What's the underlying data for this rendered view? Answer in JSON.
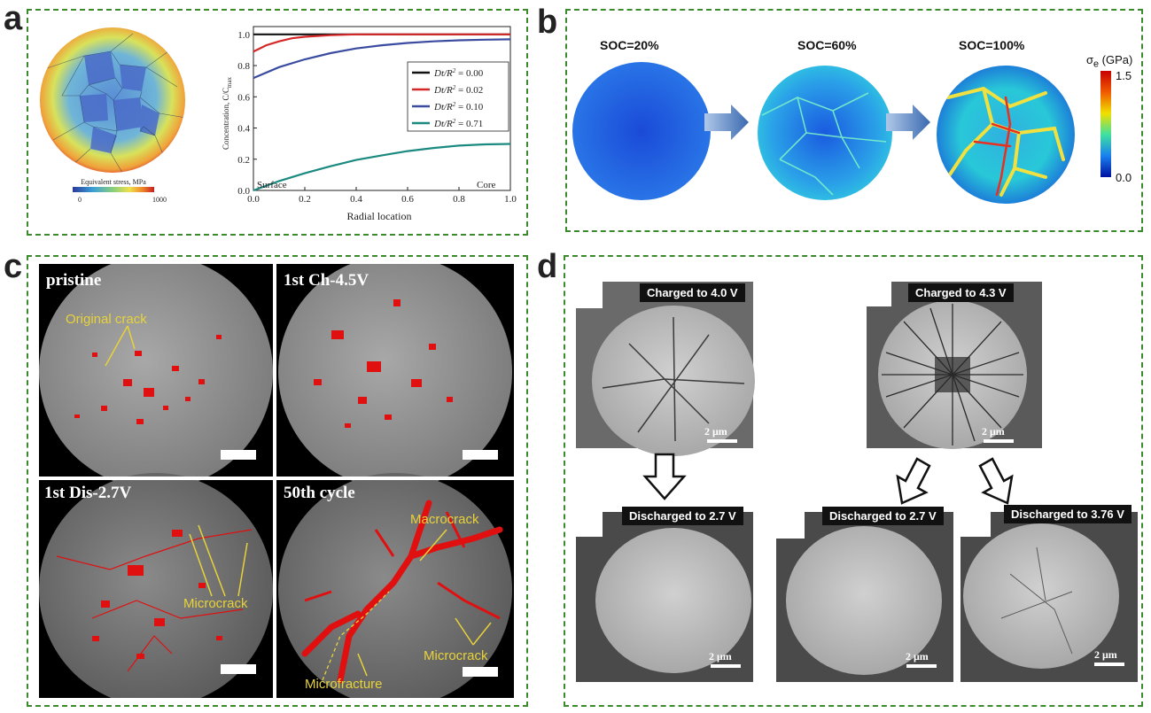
{
  "panels": {
    "a": "a",
    "b": "b",
    "c": "c",
    "d": "d"
  },
  "panel_a": {
    "colorbar_title": "Equivalent stress, MPa",
    "colorbar_min": "0",
    "colorbar_max": "1000",
    "chart_data": {
      "type": "line",
      "xlabel": "Radial location",
      "ylabel": "Concentration, C/C",
      "ylabel_sub": "max",
      "xlim": [
        0.0,
        1.0
      ],
      "ylim": [
        0.0,
        1.05
      ],
      "xticks": [
        "0.0",
        "0.2",
        "0.4",
        "0.6",
        "0.8",
        "1.0"
      ],
      "yticks": [
        "0.0",
        "0.2",
        "0.4",
        "0.6",
        "0.8",
        "1.0"
      ],
      "annotations": [
        "Surface",
        "Core"
      ],
      "series": [
        {
          "name": "Dt/R² = 0.00",
          "legend_lead": "Dt/R",
          "legend_sup": "2",
          "legend_tail": " = 0.00",
          "color": "#111111",
          "x": [
            0.0,
            0.2,
            0.4,
            0.6,
            0.8,
            1.0
          ],
          "y": [
            1.0,
            1.0,
            1.0,
            1.0,
            1.0,
            1.0
          ]
        },
        {
          "name": "Dt/R² = 0.02",
          "legend_lead": "Dt/R",
          "legend_sup": "2",
          "legend_tail": " = 0.02",
          "color": "#d62728",
          "x": [
            0.0,
            0.05,
            0.1,
            0.15,
            0.2,
            0.3,
            0.4,
            0.5,
            1.0
          ],
          "y": [
            0.89,
            0.93,
            0.955,
            0.975,
            0.985,
            0.995,
            1.0,
            1.0,
            1.0
          ]
        },
        {
          "name": "Dt/R² = 0.10",
          "legend_lead": "Dt/R",
          "legend_sup": "2",
          "legend_tail": " = 0.10",
          "color": "#3a4ba0",
          "x": [
            0.0,
            0.1,
            0.2,
            0.3,
            0.4,
            0.5,
            0.6,
            0.7,
            0.8,
            0.9,
            1.0
          ],
          "y": [
            0.72,
            0.79,
            0.84,
            0.88,
            0.91,
            0.93,
            0.945,
            0.955,
            0.962,
            0.966,
            0.968
          ]
        },
        {
          "name": "Dt/R² = 0.71",
          "legend_lead": "Dt/R",
          "legend_sup": "2",
          "legend_tail": " = 0.71",
          "color": "#1a8a80",
          "x": [
            0.0,
            0.1,
            0.2,
            0.3,
            0.4,
            0.5,
            0.6,
            0.7,
            0.8,
            0.9,
            1.0
          ],
          "y": [
            0.0,
            0.06,
            0.11,
            0.155,
            0.195,
            0.225,
            0.252,
            0.272,
            0.287,
            0.295,
            0.298
          ]
        }
      ]
    }
  },
  "panel_b": {
    "soc_labels": [
      "SOC=20%",
      "SOC=60%",
      "SOC=100%"
    ],
    "colorbar_title_symbol": "σ",
    "colorbar_title_sub": "e",
    "colorbar_title_unit": " (GPa)",
    "colorbar_max": "1.5",
    "colorbar_min": "0.0"
  },
  "panel_c": {
    "labels": [
      "pristine",
      "1st Ch-4.5V",
      "1st Dis-2.7V",
      "50th cycle"
    ],
    "annotations": {
      "original_crack": "Original crack",
      "microcrack_1": "Microcrack",
      "macrocrack": "Macrocrack",
      "microcrack_2": "Microcrack",
      "microfracture": "Microfracture"
    }
  },
  "panel_d": {
    "tags": [
      "Charged to 4.0 V",
      "Charged to 4.3 V",
      "Discharged to 2.7 V",
      "Discharged to 2.7 V",
      "Discharged to 3.76 V"
    ],
    "scale_label": "2 μm"
  }
}
